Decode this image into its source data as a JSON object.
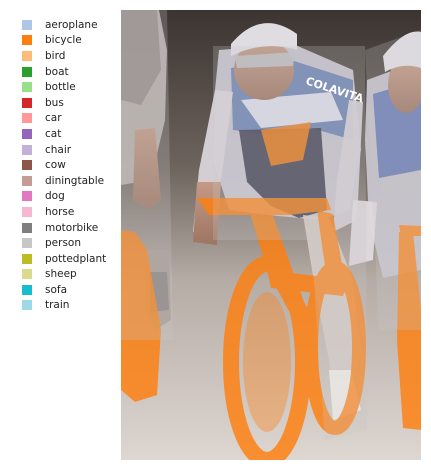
{
  "legend": {
    "items": [
      {
        "label": "aeroplane",
        "color": "#aec7e8"
      },
      {
        "label": "bicycle",
        "color": "#ff7f0e"
      },
      {
        "label": "bird",
        "color": "#ffbb78"
      },
      {
        "label": "boat",
        "color": "#2ca02c"
      },
      {
        "label": "bottle",
        "color": "#98df8a"
      },
      {
        "label": "bus",
        "color": "#d62728"
      },
      {
        "label": "car",
        "color": "#ff9896"
      },
      {
        "label": "cat",
        "color": "#9467bd"
      },
      {
        "label": "chair",
        "color": "#c5b0d5"
      },
      {
        "label": "cow",
        "color": "#8c564b"
      },
      {
        "label": "diningtable",
        "color": "#c49c94"
      },
      {
        "label": "dog",
        "color": "#e377c2"
      },
      {
        "label": "horse",
        "color": "#f7b6d2"
      },
      {
        "label": "motorbike",
        "color": "#7f7f7f"
      },
      {
        "label": "person",
        "color": "#c7c7c7"
      },
      {
        "label": "pottedplant",
        "color": "#bcbd22"
      },
      {
        "label": "sheep",
        "color": "#dbdb8d"
      },
      {
        "label": "sofa",
        "color": "#17becf"
      },
      {
        "label": "train",
        "color": "#9edae5"
      }
    ]
  },
  "photo": {
    "overlay_classes": [
      "bicycle",
      "person"
    ],
    "jersey_text": "COLAVITA"
  }
}
